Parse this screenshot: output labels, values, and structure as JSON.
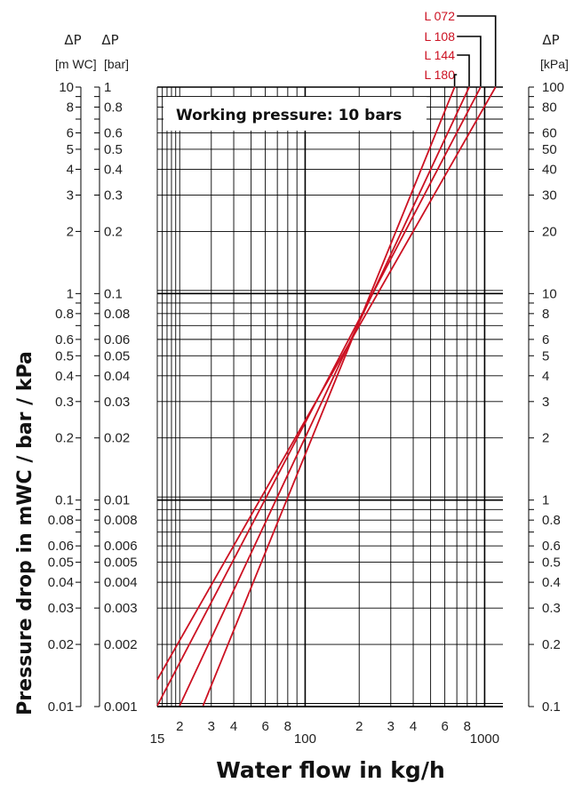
{
  "chart_data": {
    "type": "line",
    "x_scale": "log",
    "y_scale": "log",
    "xlim": [
      15,
      1200
    ],
    "ylim_bar": [
      0.001,
      1
    ],
    "grid": true,
    "xlabel": "Water flow in kg/h",
    "ylabel": "Pressure drop in mWC / bar / kPa",
    "annotation": "Working pressure: 10 bars",
    "x_tick_labels": [
      {
        "value": 15,
        "label": "15"
      },
      {
        "value": 20,
        "label": "2"
      },
      {
        "value": 30,
        "label": "3"
      },
      {
        "value": 40,
        "label": "4"
      },
      {
        "value": 60,
        "label": "6"
      },
      {
        "value": 80,
        "label": "8"
      },
      {
        "value": 100,
        "label": "100"
      },
      {
        "value": 200,
        "label": "2"
      },
      {
        "value": 300,
        "label": "3"
      },
      {
        "value": 400,
        "label": "4"
      },
      {
        "value": 600,
        "label": "6"
      },
      {
        "value": 800,
        "label": "8"
      },
      {
        "value": 1000,
        "label": "1000"
      }
    ],
    "y_axes": [
      {
        "name": "mwc",
        "header_symbol": "ΔP",
        "header_unit": "[m WC]",
        "ticks": [
          {
            "bar": 1,
            "label": "10"
          },
          {
            "bar": 0.8,
            "label": "8"
          },
          {
            "bar": 0.6,
            "label": "6"
          },
          {
            "bar": 0.5,
            "label": "5"
          },
          {
            "bar": 0.4,
            "label": "4"
          },
          {
            "bar": 0.3,
            "label": "3"
          },
          {
            "bar": 0.2,
            "label": "2"
          },
          {
            "bar": 0.1,
            "label": "1"
          },
          {
            "bar": 0.08,
            "label": "0.8"
          },
          {
            "bar": 0.06,
            "label": "0.6"
          },
          {
            "bar": 0.05,
            "label": "0.5"
          },
          {
            "bar": 0.04,
            "label": "0.4"
          },
          {
            "bar": 0.03,
            "label": "0.3"
          },
          {
            "bar": 0.02,
            "label": "0.2"
          },
          {
            "bar": 0.01,
            "label": "0.1"
          },
          {
            "bar": 0.008,
            "label": "0.08"
          },
          {
            "bar": 0.006,
            "label": "0.06"
          },
          {
            "bar": 0.005,
            "label": "0.05"
          },
          {
            "bar": 0.004,
            "label": "0.04"
          },
          {
            "bar": 0.003,
            "label": "0.03"
          },
          {
            "bar": 0.002,
            "label": "0.02"
          },
          {
            "bar": 0.001,
            "label": "0.01"
          }
        ]
      },
      {
        "name": "bar",
        "header_symbol": "ΔP",
        "header_unit": "[bar]",
        "ticks": [
          {
            "bar": 1,
            "label": "1"
          },
          {
            "bar": 0.8,
            "label": "0.8"
          },
          {
            "bar": 0.6,
            "label": "0.6"
          },
          {
            "bar": 0.5,
            "label": "0.5"
          },
          {
            "bar": 0.4,
            "label": "0.4"
          },
          {
            "bar": 0.3,
            "label": "0.3"
          },
          {
            "bar": 0.2,
            "label": "0.2"
          },
          {
            "bar": 0.1,
            "label": "0.1"
          },
          {
            "bar": 0.08,
            "label": "0.08"
          },
          {
            "bar": 0.06,
            "label": "0.06"
          },
          {
            "bar": 0.05,
            "label": "0.05"
          },
          {
            "bar": 0.04,
            "label": "0.04"
          },
          {
            "bar": 0.03,
            "label": "0.03"
          },
          {
            "bar": 0.02,
            "label": "0.02"
          },
          {
            "bar": 0.01,
            "label": "0.01"
          },
          {
            "bar": 0.008,
            "label": "0.008"
          },
          {
            "bar": 0.006,
            "label": "0.006"
          },
          {
            "bar": 0.005,
            "label": "0.005"
          },
          {
            "bar": 0.004,
            "label": "0.004"
          },
          {
            "bar": 0.003,
            "label": "0.003"
          },
          {
            "bar": 0.002,
            "label": "0.002"
          },
          {
            "bar": 0.001,
            "label": "0.001"
          }
        ]
      },
      {
        "name": "kpa",
        "header_symbol": "ΔP",
        "header_unit": "[kPa]",
        "ticks": [
          {
            "bar": 1,
            "label": "100"
          },
          {
            "bar": 0.8,
            "label": "80"
          },
          {
            "bar": 0.6,
            "label": "60"
          },
          {
            "bar": 0.5,
            "label": "50"
          },
          {
            "bar": 0.4,
            "label": "40"
          },
          {
            "bar": 0.3,
            "label": "30"
          },
          {
            "bar": 0.2,
            "label": "20"
          },
          {
            "bar": 0.1,
            "label": "10"
          },
          {
            "bar": 0.08,
            "label": "8"
          },
          {
            "bar": 0.06,
            "label": "6"
          },
          {
            "bar": 0.05,
            "label": "5"
          },
          {
            "bar": 0.04,
            "label": "4"
          },
          {
            "bar": 0.03,
            "label": "3"
          },
          {
            "bar": 0.02,
            "label": "2"
          },
          {
            "bar": 0.01,
            "label": "1"
          },
          {
            "bar": 0.008,
            "label": "0.8"
          },
          {
            "bar": 0.006,
            "label": "0.6"
          },
          {
            "bar": 0.005,
            "label": "0.5"
          },
          {
            "bar": 0.004,
            "label": "0.4"
          },
          {
            "bar": 0.003,
            "label": "0.3"
          },
          {
            "bar": 0.002,
            "label": "0.2"
          },
          {
            "bar": 0.001,
            "label": "0.1"
          }
        ]
      }
    ],
    "series_color": "#cc1122",
    "series": [
      {
        "name": "L 072",
        "points": [
          {
            "x": 15,
            "y_bar": 0.00135
          },
          {
            "x": 1150,
            "y_bar": 1
          }
        ]
      },
      {
        "name": "L 108",
        "points": [
          {
            "x": 15,
            "y_bar": 0.00101
          },
          {
            "x": 950,
            "y_bar": 1
          }
        ]
      },
      {
        "name": "L 144",
        "points": [
          {
            "x": 20,
            "y_bar": 0.00101
          },
          {
            "x": 820,
            "y_bar": 1
          }
        ]
      },
      {
        "name": "L 180",
        "points": [
          {
            "x": 27,
            "y_bar": 0.00101
          },
          {
            "x": 680,
            "y_bar": 1
          }
        ]
      }
    ]
  }
}
